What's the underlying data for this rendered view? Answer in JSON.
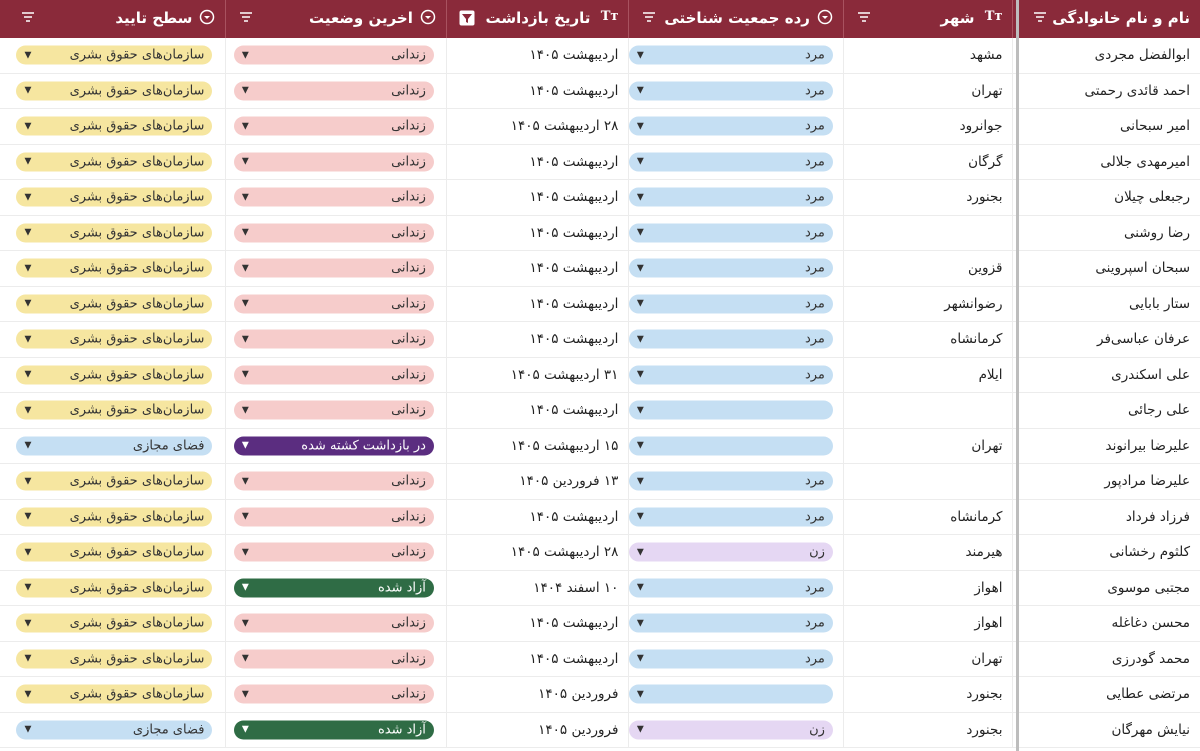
{
  "columns": {
    "approval": "سطح تایید",
    "status": "اخرین وضعیت",
    "arrest_date": "تاریخ بازداشت",
    "gender": "رده جمعیت شناختی",
    "city": "شهر",
    "name": "نام و نام خانوادگی",
    "type_icon_text": "Tт"
  },
  "colors": {
    "header_bg": "#8a2a3a",
    "gender_male": "#c5dff3",
    "gender_female": "#e5d7f3",
    "status_prison": "#f6cccb",
    "status_released": "#2f6c45",
    "status_rearrested": "#5b2d80",
    "approval_human_rights": "#f6e6a0",
    "approval_cyberspace": "#c5dff3"
  },
  "rows": [
    {
      "name": "ابوالفضل مجردی",
      "city": "مشهد",
      "gender": "مرد",
      "gender_kind": "male",
      "date": "اردیبهشت ۱۴۰۵",
      "status": "زندانی",
      "status_kind": "prison",
      "approval": "سازمان‌های حقوق بشری",
      "approval_kind": "hr"
    },
    {
      "name": "احمد قائدی رحمتی",
      "city": "تهران",
      "gender": "مرد",
      "gender_kind": "male",
      "date": "اردیبهشت ۱۴۰۵",
      "status": "زندانی",
      "status_kind": "prison",
      "approval": "سازمان‌های حقوق بشری",
      "approval_kind": "hr"
    },
    {
      "name": "امیر سبحانی",
      "city": "جوانرود",
      "gender": "مرد",
      "gender_kind": "male",
      "date": "۲۸ اردیبهشت ۱۴۰۵",
      "status": "زندانی",
      "status_kind": "prison",
      "approval": "سازمان‌های حقوق بشری",
      "approval_kind": "hr"
    },
    {
      "name": "امیرمهدی جلالی",
      "city": "گرگان",
      "gender": "مرد",
      "gender_kind": "male",
      "date": "اردیبهشت ۱۴۰۵",
      "status": "زندانی",
      "status_kind": "prison",
      "approval": "سازمان‌های حقوق بشری",
      "approval_kind": "hr"
    },
    {
      "name": "رجبعلی چیلان",
      "city": "بجنورد",
      "gender": "مرد",
      "gender_kind": "male",
      "date": "اردیبهشت ۱۴۰۵",
      "status": "زندانی",
      "status_kind": "prison",
      "approval": "سازمان‌های حقوق بشری",
      "approval_kind": "hr"
    },
    {
      "name": "رضا روشنی",
      "city": "",
      "gender": "مرد",
      "gender_kind": "male",
      "date": "اردیبهشت ۱۴۰۵",
      "status": "زندانی",
      "status_kind": "prison",
      "approval": "سازمان‌های حقوق بشری",
      "approval_kind": "hr"
    },
    {
      "name": "سبحان اسپروینی",
      "city": "قزوین",
      "gender": "مرد",
      "gender_kind": "male",
      "date": "اردیبهشت ۱۴۰۵",
      "status": "زندانی",
      "status_kind": "prison",
      "approval": "سازمان‌های حقوق بشری",
      "approval_kind": "hr"
    },
    {
      "name": "ستار بابایی",
      "city": "رضوانشهر",
      "gender": "مرد",
      "gender_kind": "male",
      "date": "اردیبهشت ۱۴۰۵",
      "status": "زندانی",
      "status_kind": "prison",
      "approval": "سازمان‌های حقوق بشری",
      "approval_kind": "hr"
    },
    {
      "name": "عرفان عباسی‌فر",
      "city": "کرمانشاه",
      "gender": "مرد",
      "gender_kind": "male",
      "date": "اردیبهشت ۱۴۰۵",
      "status": "زندانی",
      "status_kind": "prison",
      "approval": "سازمان‌های حقوق بشری",
      "approval_kind": "hr"
    },
    {
      "name": "علی اسکندری",
      "city": "ایلام",
      "gender": "مرد",
      "gender_kind": "male",
      "date": "۳۱ اردیبهشت ۱۴۰۵",
      "status": "زندانی",
      "status_kind": "prison",
      "approval": "سازمان‌های حقوق بشری",
      "approval_kind": "hr"
    },
    {
      "name": "علی رجائی",
      "city": "",
      "gender": "",
      "gender_kind": "male",
      "date": "اردیبهشت ۱۴۰۵",
      "status": "زندانی",
      "status_kind": "prison",
      "approval": "سازمان‌های حقوق بشری",
      "approval_kind": "hr"
    },
    {
      "name": "علیرضا بیرانوند",
      "city": "تهران",
      "gender": "",
      "gender_kind": "male",
      "date": "۱۵ اردیبهشت ۱۴۰۵",
      "status": "در بازداشت کشته شده",
      "status_kind": "rearrested",
      "approval": "فضای مجازی",
      "approval_kind": "cyber"
    },
    {
      "name": "علیرضا مرادپور",
      "city": "",
      "gender": "مرد",
      "gender_kind": "male",
      "date": "۱۳ فروردین ۱۴۰۵",
      "status": "زندانی",
      "status_kind": "prison",
      "approval": "سازمان‌های حقوق بشری",
      "approval_kind": "hr"
    },
    {
      "name": "فرزاد فرداد",
      "city": "کرمانشاه",
      "gender": "مرد",
      "gender_kind": "male",
      "date": "اردیبهشت ۱۴۰۵",
      "status": "زندانی",
      "status_kind": "prison",
      "approval": "سازمان‌های حقوق بشری",
      "approval_kind": "hr"
    },
    {
      "name": "کلثوم رخشانی",
      "city": "هیرمند",
      "gender": "زن",
      "gender_kind": "female",
      "date": "۲۸ اردیبهشت ۱۴۰۵",
      "status": "زندانی",
      "status_kind": "prison",
      "approval": "سازمان‌های حقوق بشری",
      "approval_kind": "hr"
    },
    {
      "name": "مجتبی موسوی",
      "city": "اهواز",
      "gender": "مرد",
      "gender_kind": "male",
      "date": "۱۰ اسفند ۱۴۰۴",
      "status": "آزاد شده",
      "status_kind": "released",
      "approval": "سازمان‌های حقوق بشری",
      "approval_kind": "hr"
    },
    {
      "name": "محسن دغاغله",
      "city": "اهواز",
      "gender": "مرد",
      "gender_kind": "male",
      "date": "اردیبهشت ۱۴۰۵",
      "status": "زندانی",
      "status_kind": "prison",
      "approval": "سازمان‌های حقوق بشری",
      "approval_kind": "hr"
    },
    {
      "name": "محمد گودرزی",
      "city": "تهران",
      "gender": "مرد",
      "gender_kind": "male",
      "date": "اردیبهشت ۱۴۰۵",
      "status": "زندانی",
      "status_kind": "prison",
      "approval": "سازمان‌های حقوق بشری",
      "approval_kind": "hr"
    },
    {
      "name": "مرتضی عطایی",
      "city": "بجنورد",
      "gender": "",
      "gender_kind": "male",
      "date": "فروردین ۱۴۰۵",
      "status": "زندانی",
      "status_kind": "prison",
      "approval": "سازمان‌های حقوق بشری",
      "approval_kind": "hr"
    },
    {
      "name": "نیایش مهرگان",
      "city": "بجنورد",
      "gender": "زن",
      "gender_kind": "female",
      "date": "فروردین ۱۴۰۵",
      "status": "آزاد شده",
      "status_kind": "released",
      "approval": "فضای مجازی",
      "approval_kind": "cyber"
    }
  ]
}
